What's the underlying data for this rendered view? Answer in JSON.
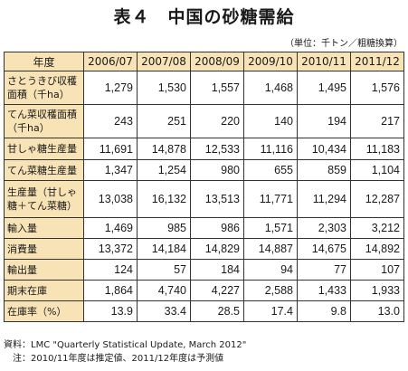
{
  "title": "表４　中国の砂糖需給",
  "unit": "（単位：千トン／粗糖換算）",
  "table": {
    "header_label": "年度",
    "years": [
      "2006/07",
      "2007/08",
      "2008/09",
      "2009/10",
      "2010/11",
      "2011/12"
    ],
    "rows": [
      {
        "label": "さとうきび収穫面積（千ha）",
        "values": [
          "1,279",
          "1,530",
          "1,557",
          "1,468",
          "1,495",
          "1,576"
        ]
      },
      {
        "label": "てん菜収穫面積（千ha）",
        "values": [
          "243",
          "251",
          "220",
          "140",
          "194",
          "217"
        ]
      },
      {
        "label": "甘しゃ糖生産量",
        "values": [
          "11,691",
          "14,878",
          "12,533",
          "11,116",
          "10,434",
          "11,183"
        ]
      },
      {
        "label": "てん菜糖生産量",
        "values": [
          "1,347",
          "1,254",
          "980",
          "655",
          "859",
          "1,104"
        ]
      },
      {
        "label": "生産量（甘しゃ糖＋てん菜糖）",
        "values": [
          "13,038",
          "16,132",
          "13,513",
          "11,771",
          "11,294",
          "12,287"
        ]
      },
      {
        "label": "輸入量",
        "values": [
          "1,469",
          "985",
          "986",
          "1,571",
          "2,303",
          "3,212"
        ]
      },
      {
        "label": "消費量",
        "values": [
          "13,372",
          "14,184",
          "14,829",
          "14,887",
          "14,675",
          "14,892"
        ]
      },
      {
        "label": "輸出量",
        "values": [
          "124",
          "57",
          "184",
          "94",
          "77",
          "107"
        ]
      },
      {
        "label": "期末在庫",
        "values": [
          "1,864",
          "4,740",
          "4,227",
          "2,588",
          "1,433",
          "1,933"
        ]
      },
      {
        "label": "在庫率（%）",
        "values": [
          "13.9",
          "33.4",
          "28.5",
          "17.4",
          "9.8",
          "13.0"
        ]
      }
    ]
  },
  "notes": {
    "source": "資料：LMC \"Quarterly Statistical Update, March 2012\"",
    "note": "注：2010/11年度は推定値、2011/12年度は予測値"
  },
  "colors": {
    "header_fill": "#f7e3b6",
    "border": "#333333"
  }
}
